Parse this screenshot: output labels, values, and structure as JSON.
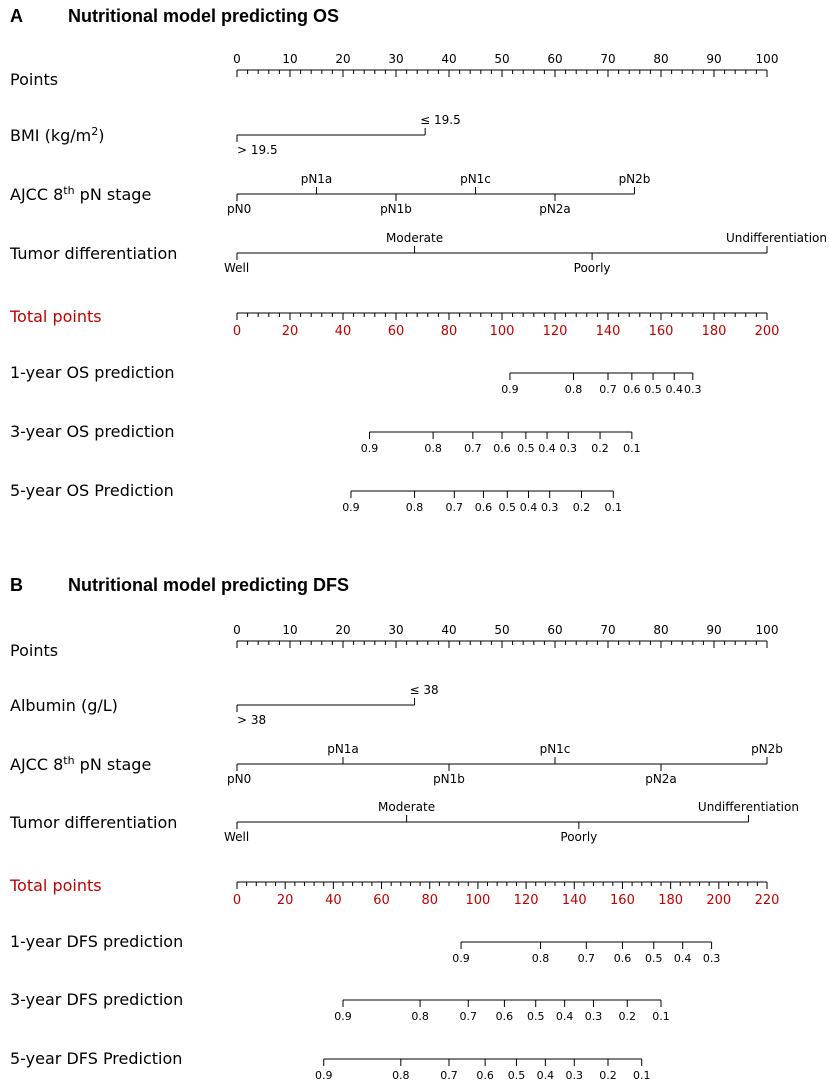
{
  "chart_data": [
    {
      "type": "nomogram",
      "panel_label": "A",
      "title": "Nutritional model predicting OS",
      "points_scale": {
        "label": "Points",
        "min": 0,
        "max": 100,
        "major": 10,
        "minor": 2,
        "labels": [
          "0",
          "10",
          "20",
          "30",
          "40",
          "50",
          "60",
          "70",
          "80",
          "90",
          "100"
        ]
      },
      "variables": [
        {
          "key": "bmi",
          "label": "BMI (kg/m",
          "sup": "2",
          "label_after": ")",
          "levels": [
            {
              "name": "> 19.5",
              "points": 0,
              "pos": "below"
            },
            {
              "name": "≤ 19.5",
              "points": 35.5,
              "pos": "above"
            }
          ]
        },
        {
          "key": "pn",
          "label": "AJCC 8",
          "sup": "th",
          "label_after": " pN stage",
          "levels": [
            {
              "name": "pN0",
              "points": 0,
              "pos": "below"
            },
            {
              "name": "pN1a",
              "points": 15,
              "pos": "above"
            },
            {
              "name": "pN1b",
              "points": 30,
              "pos": "below"
            },
            {
              "name": "pN1c",
              "points": 45,
              "pos": "above"
            },
            {
              "name": "pN2a",
              "points": 60,
              "pos": "below"
            },
            {
              "name": "pN2b",
              "points": 75,
              "pos": "above"
            }
          ]
        },
        {
          "key": "td",
          "label": "Tumor differentiation",
          "levels": [
            {
              "name": "Well",
              "points": 0,
              "pos": "below"
            },
            {
              "name": "Moderate",
              "points": 33.5,
              "pos": "above"
            },
            {
              "name": "Poorly",
              "points": 67,
              "pos": "below"
            },
            {
              "name": "Undifferentiation",
              "points": 100,
              "pos": "above"
            }
          ]
        }
      ],
      "total_points": {
        "label": "Total points",
        "min": 0,
        "max": 200,
        "major": 20,
        "minor": 4,
        "labels": [
          "0",
          "20",
          "40",
          "60",
          "80",
          "100",
          "120",
          "140",
          "160",
          "180",
          "200"
        ]
      },
      "predictions": [
        {
          "label": "1-year OS prediction",
          "ticks": [
            {
              "p": "0.9",
              "t": 103
            },
            {
              "p": "0.8",
              "t": 127
            },
            {
              "p": "0.7",
              "t": 140
            },
            {
              "p": "0.6",
              "t": 149
            },
            {
              "p": "0.5",
              "t": 157
            },
            {
              "p": "0.4",
              "t": 165
            },
            {
              "p": "0.3",
              "t": 172
            }
          ]
        },
        {
          "label": "3-year OS prediction",
          "ticks": [
            {
              "p": "0.9",
              "t": 50
            },
            {
              "p": "0.8",
              "t": 74
            },
            {
              "p": "0.7",
              "t": 89
            },
            {
              "p": "0.6",
              "t": 100
            },
            {
              "p": "0.5",
              "t": 109
            },
            {
              "p": "0.4",
              "t": 117
            },
            {
              "p": "0.3",
              "t": 125
            },
            {
              "p": "0.2",
              "t": 137
            },
            {
              "p": "0.1",
              "t": 149
            }
          ]
        },
        {
          "label": "5-year OS Prediction",
          "ticks": [
            {
              "p": "0.9",
              "t": 43
            },
            {
              "p": "0.8",
              "t": 67
            },
            {
              "p": "0.7",
              "t": 82
            },
            {
              "p": "0.6",
              "t": 93
            },
            {
              "p": "0.5",
              "t": 102
            },
            {
              "p": "0.4",
              "t": 110
            },
            {
              "p": "0.3",
              "t": 118
            },
            {
              "p": "0.2",
              "t": 130
            },
            {
              "p": "0.1",
              "t": 142
            }
          ]
        }
      ]
    },
    {
      "type": "nomogram",
      "panel_label": "B",
      "title": "Nutritional model predicting DFS",
      "points_scale": {
        "label": "Points",
        "min": 0,
        "max": 100,
        "major": 10,
        "minor": 2,
        "labels": [
          "0",
          "10",
          "20",
          "30",
          "40",
          "50",
          "60",
          "70",
          "80",
          "90",
          "100"
        ]
      },
      "variables": [
        {
          "key": "alb",
          "label": "Albumin (g/L)",
          "levels": [
            {
              "name": "> 38",
              "points": 0,
              "pos": "below"
            },
            {
              "name": "≤ 38",
              "points": 33.5,
              "pos": "above"
            }
          ]
        },
        {
          "key": "pn",
          "label": "AJCC 8",
          "sup": "th",
          "label_after": " pN stage",
          "levels": [
            {
              "name": "pN0",
              "points": 0,
              "pos": "below"
            },
            {
              "name": "pN1a",
              "points": 20,
              "pos": "above"
            },
            {
              "name": "pN1b",
              "points": 40,
              "pos": "below"
            },
            {
              "name": "pN1c",
              "points": 60,
              "pos": "above"
            },
            {
              "name": "pN2a",
              "points": 80,
              "pos": "below"
            },
            {
              "name": "pN2b",
              "points": 100,
              "pos": "above"
            }
          ]
        },
        {
          "key": "td",
          "label": "Tumor differentiation",
          "levels": [
            {
              "name": "Well",
              "points": 0,
              "pos": "below"
            },
            {
              "name": "Moderate",
              "points": 32,
              "pos": "above"
            },
            {
              "name": "Poorly",
              "points": 64.5,
              "pos": "below"
            },
            {
              "name": "Undifferentiation",
              "points": 96.5,
              "pos": "above"
            }
          ]
        }
      ],
      "total_points": {
        "label": "Total points",
        "min": 0,
        "max": 220,
        "major": 20,
        "minor": 4,
        "labels": [
          "0",
          "20",
          "40",
          "60",
          "80",
          "100",
          "120",
          "140",
          "160",
          "180",
          "200",
          "220"
        ]
      },
      "predictions": [
        {
          "label": "1-year DFS prediction",
          "ticks": [
            {
              "p": "0.9",
              "t": 93
            },
            {
              "p": "0.8",
              "t": 126
            },
            {
              "p": "0.7",
              "t": 145
            },
            {
              "p": "0.6",
              "t": 160
            },
            {
              "p": "0.5",
              "t": 173
            },
            {
              "p": "0.4",
              "t": 185
            },
            {
              "p": "0.3",
              "t": 197
            }
          ]
        },
        {
          "label": "3-year DFS prediction",
          "ticks": [
            {
              "p": "0.9",
              "t": 44
            },
            {
              "p": "0.8",
              "t": 76
            },
            {
              "p": "0.7",
              "t": 96
            },
            {
              "p": "0.6",
              "t": 111
            },
            {
              "p": "0.5",
              "t": 124
            },
            {
              "p": "0.4",
              "t": 136
            },
            {
              "p": "0.3",
              "t": 148
            },
            {
              "p": "0.2",
              "t": 162
            },
            {
              "p": "0.1",
              "t": 176
            }
          ]
        },
        {
          "label": "5-year DFS Prediction",
          "ticks": [
            {
              "p": "0.9",
              "t": 36
            },
            {
              "p": "0.8",
              "t": 68
            },
            {
              "p": "0.7",
              "t": 88
            },
            {
              "p": "0.6",
              "t": 103
            },
            {
              "p": "0.5",
              "t": 116
            },
            {
              "p": "0.4",
              "t": 128
            },
            {
              "p": "0.3",
              "t": 140
            },
            {
              "p": "0.2",
              "t": 154
            },
            {
              "p": "0.1",
              "t": 168
            }
          ]
        }
      ]
    }
  ]
}
